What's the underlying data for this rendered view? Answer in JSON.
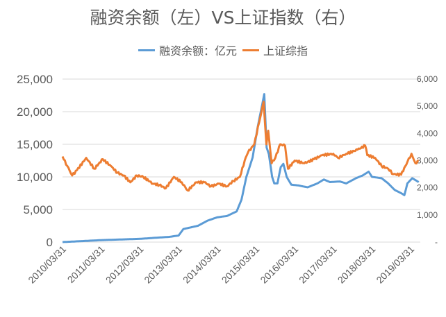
{
  "chart_data": {
    "type": "line",
    "title": "融资余额（左）VS上证指数（右）",
    "legend_position": "top",
    "grid": true,
    "x_tick_labels": [
      "2010/03/31",
      "2011/03/31",
      "2012/03/31",
      "2013/03/31",
      "2014/03/31",
      "2015/03/31",
      "2016/03/31",
      "2017/03/31",
      "2018/03/31",
      "2019/03/31"
    ],
    "y_left": {
      "range": [
        0,
        25000
      ],
      "tick_labels": [
        "0",
        "5,000",
        "10,000",
        "15,000",
        "20,000",
        "25,000"
      ]
    },
    "y_right": {
      "range": [
        0,
        6000
      ],
      "tick_labels": [
        "-",
        "1,000",
        "2,000",
        "3,000",
        "4,000",
        "5,000",
        "6,000"
      ]
    },
    "series": [
      {
        "name": "融资余额：亿元",
        "axis": "left",
        "color": "#5B9BD5",
        "points": [
          [
            "2010-03-31",
            0
          ],
          [
            "2011-03-31",
            300
          ],
          [
            "2012-03-31",
            500
          ],
          [
            "2012-12-31",
            800
          ],
          [
            "2013-03-31",
            1000
          ],
          [
            "2013-05-15",
            2000
          ],
          [
            "2013-09-30",
            2500
          ],
          [
            "2013-12-31",
            3300
          ],
          [
            "2014-03-31",
            3800
          ],
          [
            "2014-06-30",
            4000
          ],
          [
            "2014-09-30",
            4700
          ],
          [
            "2014-11-15",
            6500
          ],
          [
            "2014-12-31",
            10000
          ],
          [
            "2015-02-28",
            13000
          ],
          [
            "2015-04-15",
            17500
          ],
          [
            "2015-06-18",
            22700
          ],
          [
            "2015-07-10",
            14500
          ],
          [
            "2015-07-31",
            13500
          ],
          [
            "2015-08-31",
            10000
          ],
          [
            "2015-09-20",
            9000
          ],
          [
            "2015-10-20",
            9000
          ],
          [
            "2015-11-20",
            11500
          ],
          [
            "2015-12-15",
            12000
          ],
          [
            "2016-01-15",
            10000
          ],
          [
            "2016-02-28",
            8800
          ],
          [
            "2016-04-30",
            8700
          ],
          [
            "2016-07-31",
            8400
          ],
          [
            "2016-10-31",
            9000
          ],
          [
            "2016-12-31",
            9600
          ],
          [
            "2017-02-28",
            9200
          ],
          [
            "2017-05-31",
            9300
          ],
          [
            "2017-07-31",
            9000
          ],
          [
            "2017-10-31",
            9800
          ],
          [
            "2017-12-31",
            10200
          ],
          [
            "2018-02-28",
            10800
          ],
          [
            "2018-03-31",
            10000
          ],
          [
            "2018-06-30",
            9800
          ],
          [
            "2018-08-31",
            9000
          ],
          [
            "2018-10-31",
            8000
          ],
          [
            "2018-12-31",
            7500
          ],
          [
            "2019-01-31",
            7200
          ],
          [
            "2019-02-28",
            9000
          ],
          [
            "2019-04-15",
            9800
          ],
          [
            "2019-06-15",
            9200
          ]
        ]
      },
      {
        "name": "上证综指",
        "axis": "right",
        "color": "#ED7D31",
        "points": [
          [
            "2010-03-31",
            3150
          ],
          [
            "2010-05-15",
            2800
          ],
          [
            "2010-06-30",
            2450
          ],
          [
            "2010-08-15",
            2650
          ],
          [
            "2010-11-10",
            3100
          ],
          [
            "2011-01-25",
            2700
          ],
          [
            "2011-04-15",
            3050
          ],
          [
            "2011-06-30",
            2800
          ],
          [
            "2011-08-31",
            2550
          ],
          [
            "2011-10-31",
            2450
          ],
          [
            "2011-12-31",
            2200
          ],
          [
            "2012-03-01",
            2450
          ],
          [
            "2012-05-01",
            2400
          ],
          [
            "2012-07-31",
            2150
          ],
          [
            "2012-09-30",
            2100
          ],
          [
            "2012-11-30",
            1980
          ],
          [
            "2013-02-15",
            2400
          ],
          [
            "2013-04-30",
            2200
          ],
          [
            "2013-06-25",
            1900
          ],
          [
            "2013-09-15",
            2200
          ],
          [
            "2013-11-30",
            2200
          ],
          [
            "2014-01-31",
            2050
          ],
          [
            "2014-04-15",
            2150
          ],
          [
            "2014-06-30",
            2050
          ],
          [
            "2014-08-31",
            2250
          ],
          [
            "2014-10-31",
            2400
          ],
          [
            "2014-12-15",
            3000
          ],
          [
            "2015-01-15",
            3300
          ],
          [
            "2015-03-15",
            3600
          ],
          [
            "2015-04-30",
            4400
          ],
          [
            "2015-06-12",
            5166
          ],
          [
            "2015-07-08",
            3600
          ],
          [
            "2015-07-25",
            4100
          ],
          [
            "2015-08-26",
            2900
          ],
          [
            "2015-09-30",
            3100
          ],
          [
            "2015-11-15",
            3600
          ],
          [
            "2015-12-31",
            3550
          ],
          [
            "2016-01-28",
            2700
          ],
          [
            "2016-03-31",
            3000
          ],
          [
            "2016-06-30",
            2900
          ],
          [
            "2016-09-30",
            3050
          ],
          [
            "2016-12-15",
            3200
          ],
          [
            "2017-03-31",
            3250
          ],
          [
            "2017-05-15",
            3100
          ],
          [
            "2017-07-31",
            3250
          ],
          [
            "2017-11-15",
            3400
          ],
          [
            "2018-01-26",
            3550
          ],
          [
            "2018-02-15",
            3200
          ],
          [
            "2018-04-30",
            3100
          ],
          [
            "2018-06-30",
            2800
          ],
          [
            "2018-08-31",
            2700
          ],
          [
            "2018-10-18",
            2500
          ],
          [
            "2018-12-31",
            2480
          ],
          [
            "2019-02-28",
            2950
          ],
          [
            "2019-04-08",
            3250
          ],
          [
            "2019-05-15",
            2900
          ],
          [
            "2019-06-15",
            3000
          ]
        ]
      }
    ]
  }
}
